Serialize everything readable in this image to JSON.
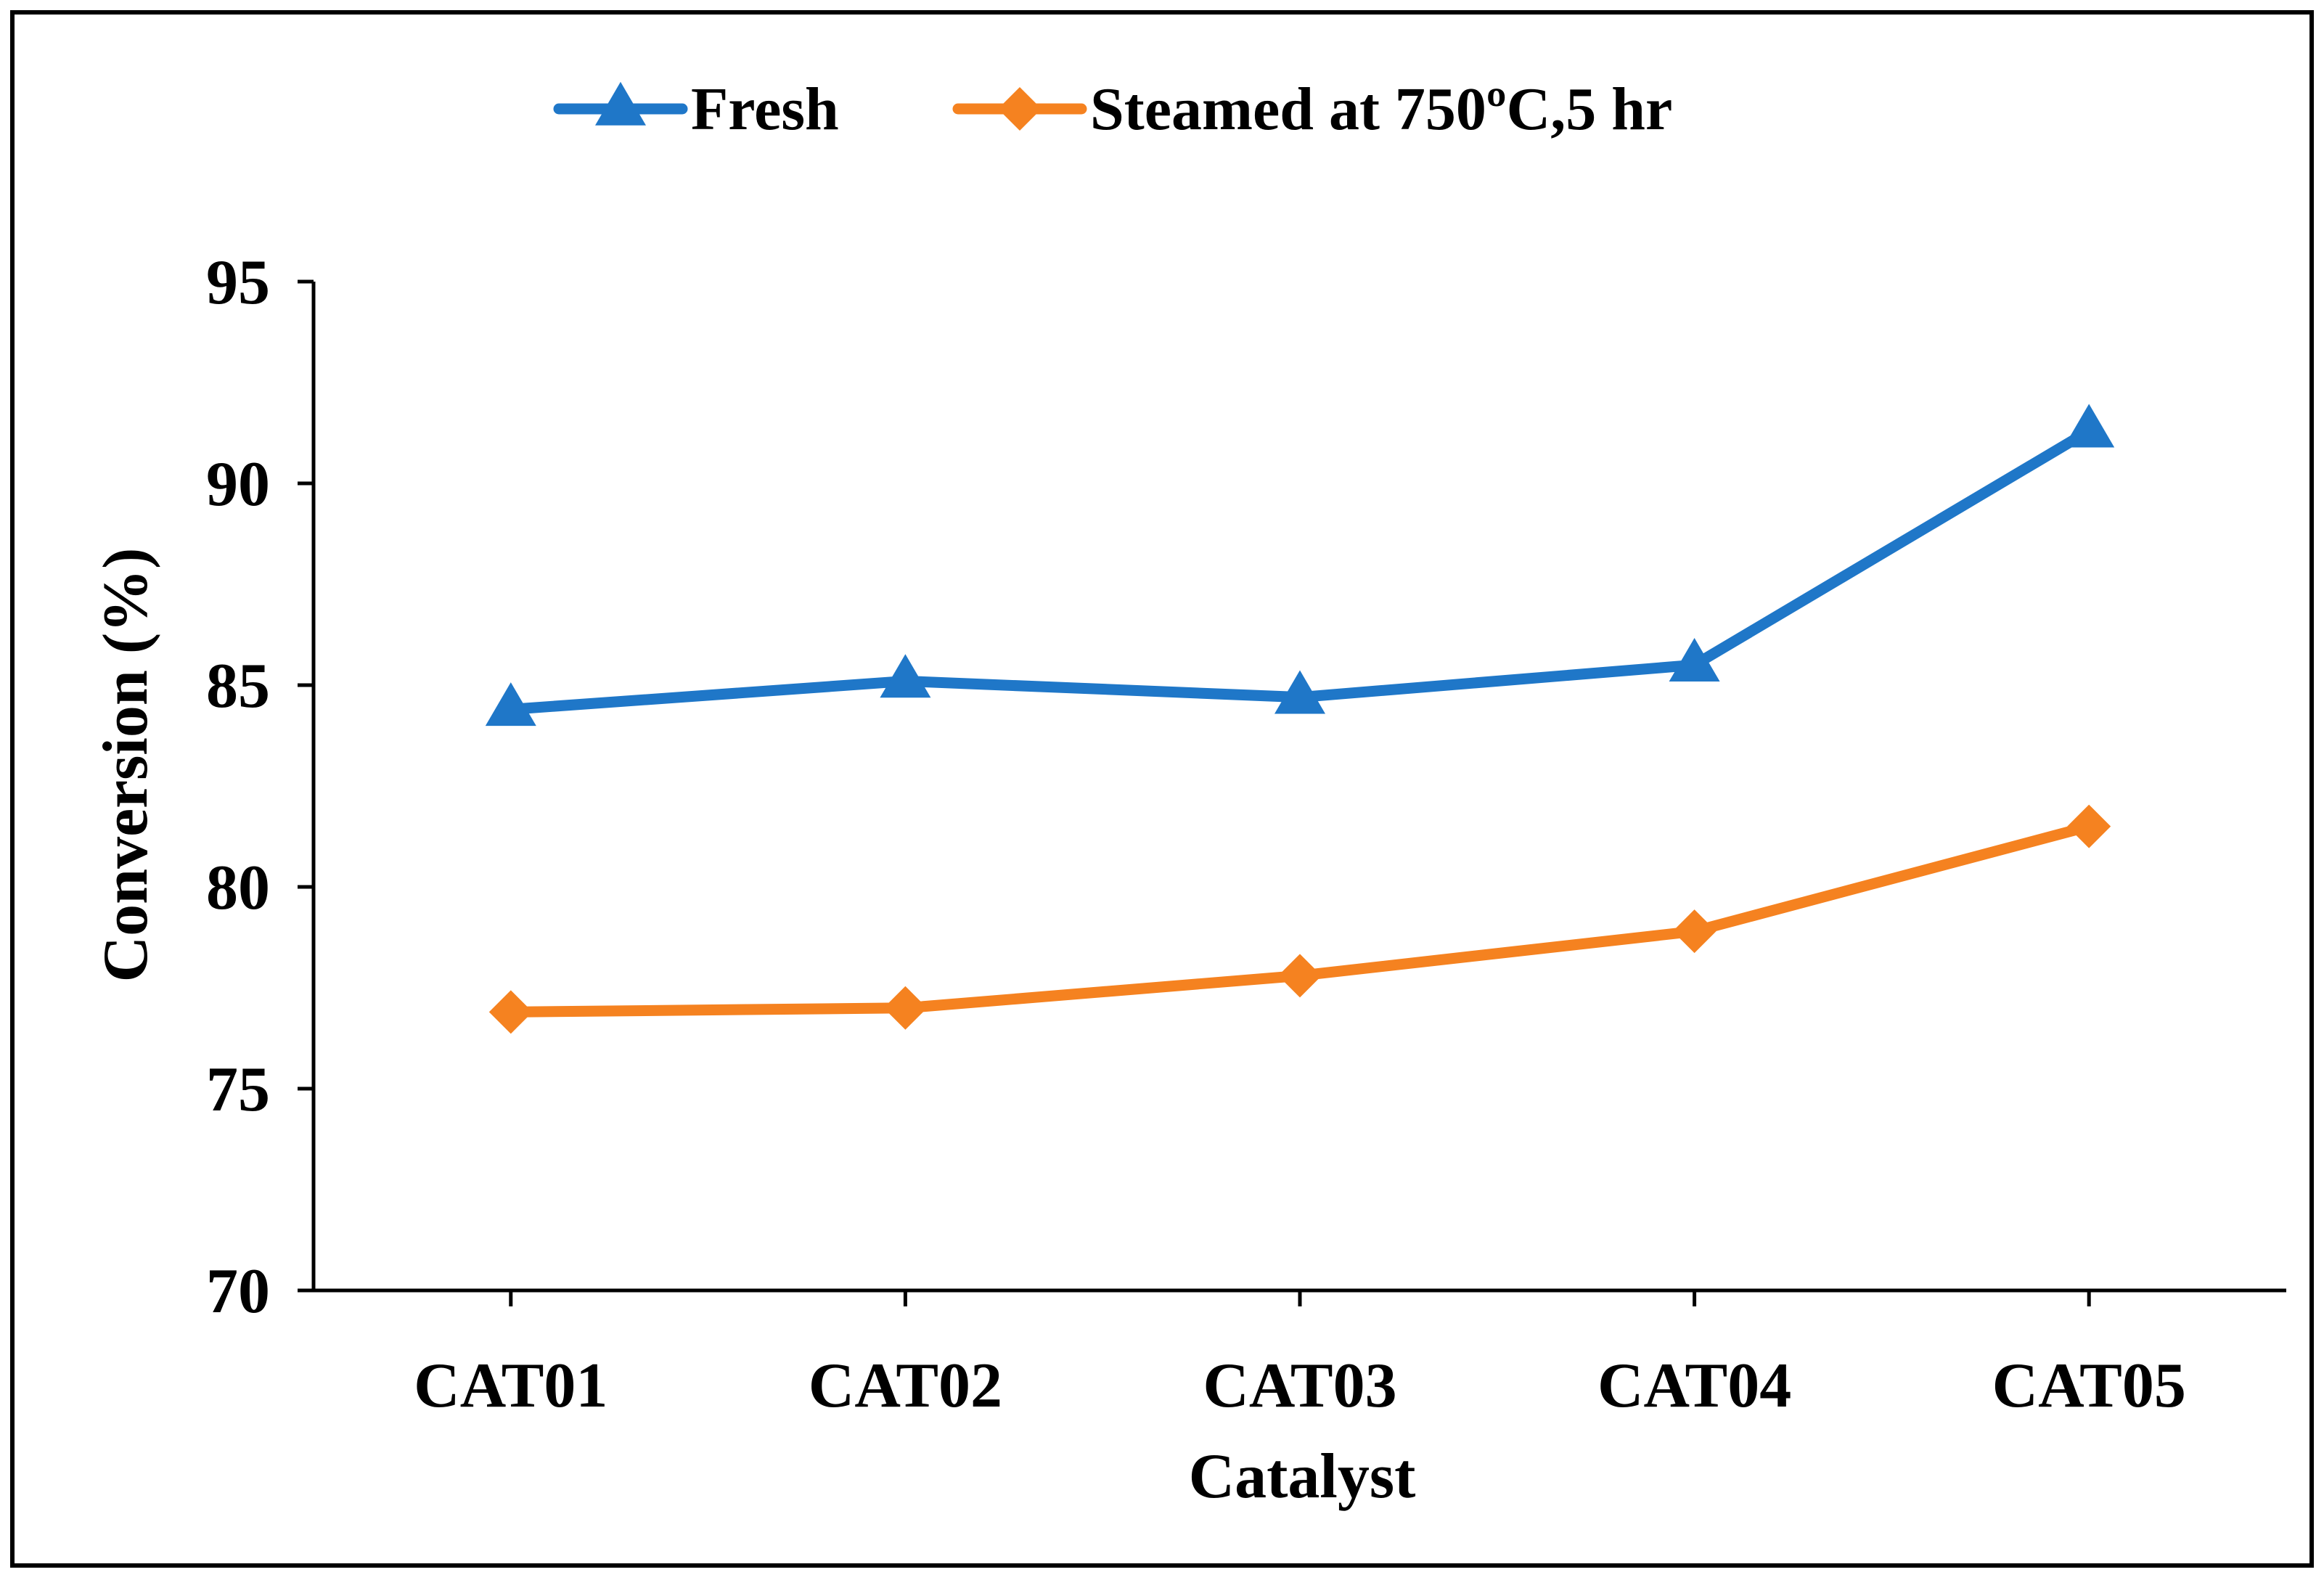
{
  "chart_data": {
    "type": "line",
    "title": "",
    "xlabel": "Catalyst",
    "ylabel": "Conversion (%)",
    "categories": [
      "CAT01",
      "CAT02",
      "CAT03",
      "CAT04",
      "CAT05"
    ],
    "ylim": [
      70,
      95
    ],
    "yticks": [
      70,
      75,
      80,
      85,
      90,
      95
    ],
    "grid": false,
    "legend_position": "top-center",
    "series": [
      {
        "name": "Fresh",
        "marker": "triangle",
        "color": "#1F77C8",
        "values": [
          84.4,
          85.1,
          84.7,
          85.5,
          91.3
        ]
      },
      {
        "name": "Steamed at 750ºC,5 hr",
        "marker": "diamond",
        "color": "#F58220",
        "values": [
          76.9,
          77.0,
          77.8,
          78.9,
          81.5
        ]
      }
    ]
  }
}
